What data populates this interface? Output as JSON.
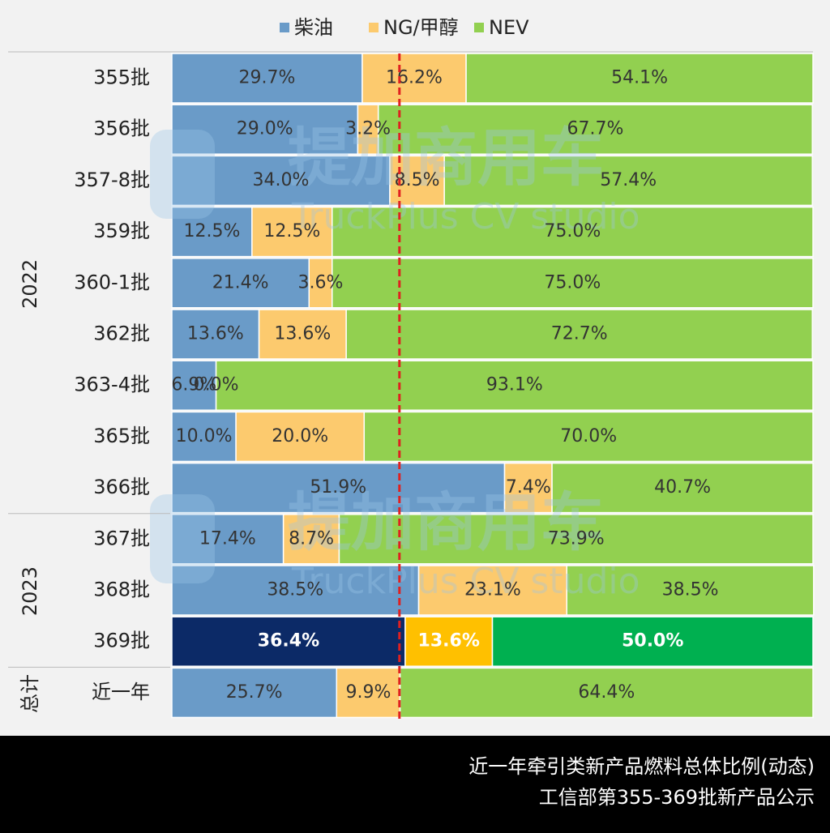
{
  "chart_data": {
    "type": "stacked-bar-100",
    "orientation": "horizontal",
    "category_groups": [
      {
        "label": "2022",
        "categories": [
          "355批",
          "356批",
          "357-8批",
          "359批",
          "360-1批",
          "362批",
          "363-4批",
          "365批",
          "366批"
        ]
      },
      {
        "label": "2023",
        "categories": [
          "367批",
          "368批",
          "369批"
        ]
      },
      {
        "label": "总计",
        "categories": [
          "近一年"
        ]
      }
    ],
    "series": [
      {
        "name": "柴油",
        "color": "#6a9bc8",
        "highlight_color": "#0c2a67",
        "values": [
          29.7,
          29.0,
          34.0,
          12.5,
          21.4,
          13.6,
          6.9,
          10.0,
          51.9,
          17.4,
          38.5,
          36.4,
          25.7
        ],
        "value_labels": [
          "29.7%",
          "29.0%",
          "34.0%",
          "12.5%",
          "21.4%",
          "13.6%",
          "6.9%",
          "10.0%",
          "51.9%",
          "17.4%",
          "38.5%",
          "36.4%",
          "25.7%"
        ]
      },
      {
        "name": "NG/甲醇",
        "color": "#fcca6e",
        "highlight_color": "#ffc000",
        "values": [
          16.2,
          3.2,
          8.5,
          12.5,
          3.6,
          13.6,
          0.0,
          20.0,
          7.4,
          8.7,
          23.1,
          13.6,
          9.9
        ],
        "value_labels": [
          "16.2%",
          "3.2%",
          "8.5%",
          "12.5%",
          "3.6%",
          "13.6%",
          "0.0%",
          "20.0%",
          "7.4%",
          "8.7%",
          "23.1%",
          "13.6%",
          "9.9%"
        ]
      },
      {
        "name": "NEV",
        "color": "#92d050",
        "highlight_color": "#00b050",
        "values": [
          54.1,
          67.7,
          57.4,
          75.0,
          75.0,
          72.7,
          93.1,
          70.0,
          40.7,
          73.9,
          38.5,
          50.0,
          64.4
        ],
        "value_labels": [
          "54.1%",
          "67.7%",
          "57.4%",
          "75.0%",
          "75.0%",
          "72.7%",
          "93.1%",
          "70.0%",
          "40.7%",
          "73.9%",
          "38.5%",
          "50.0%",
          "64.4%"
        ]
      }
    ],
    "highlight_category": "369批",
    "xlim": [
      0,
      100
    ],
    "reference_line": {
      "value": 35.5,
      "color": "#e02020",
      "style": "dashed"
    },
    "legend": "top",
    "watermark": {
      "text": "提加商用车",
      "subtext": "TruckPlus CV studio"
    },
    "footer": [
      "近一年牵引类新产品燃料总体比例(动态)",
      "工信部第355-369批新产品公示"
    ]
  }
}
